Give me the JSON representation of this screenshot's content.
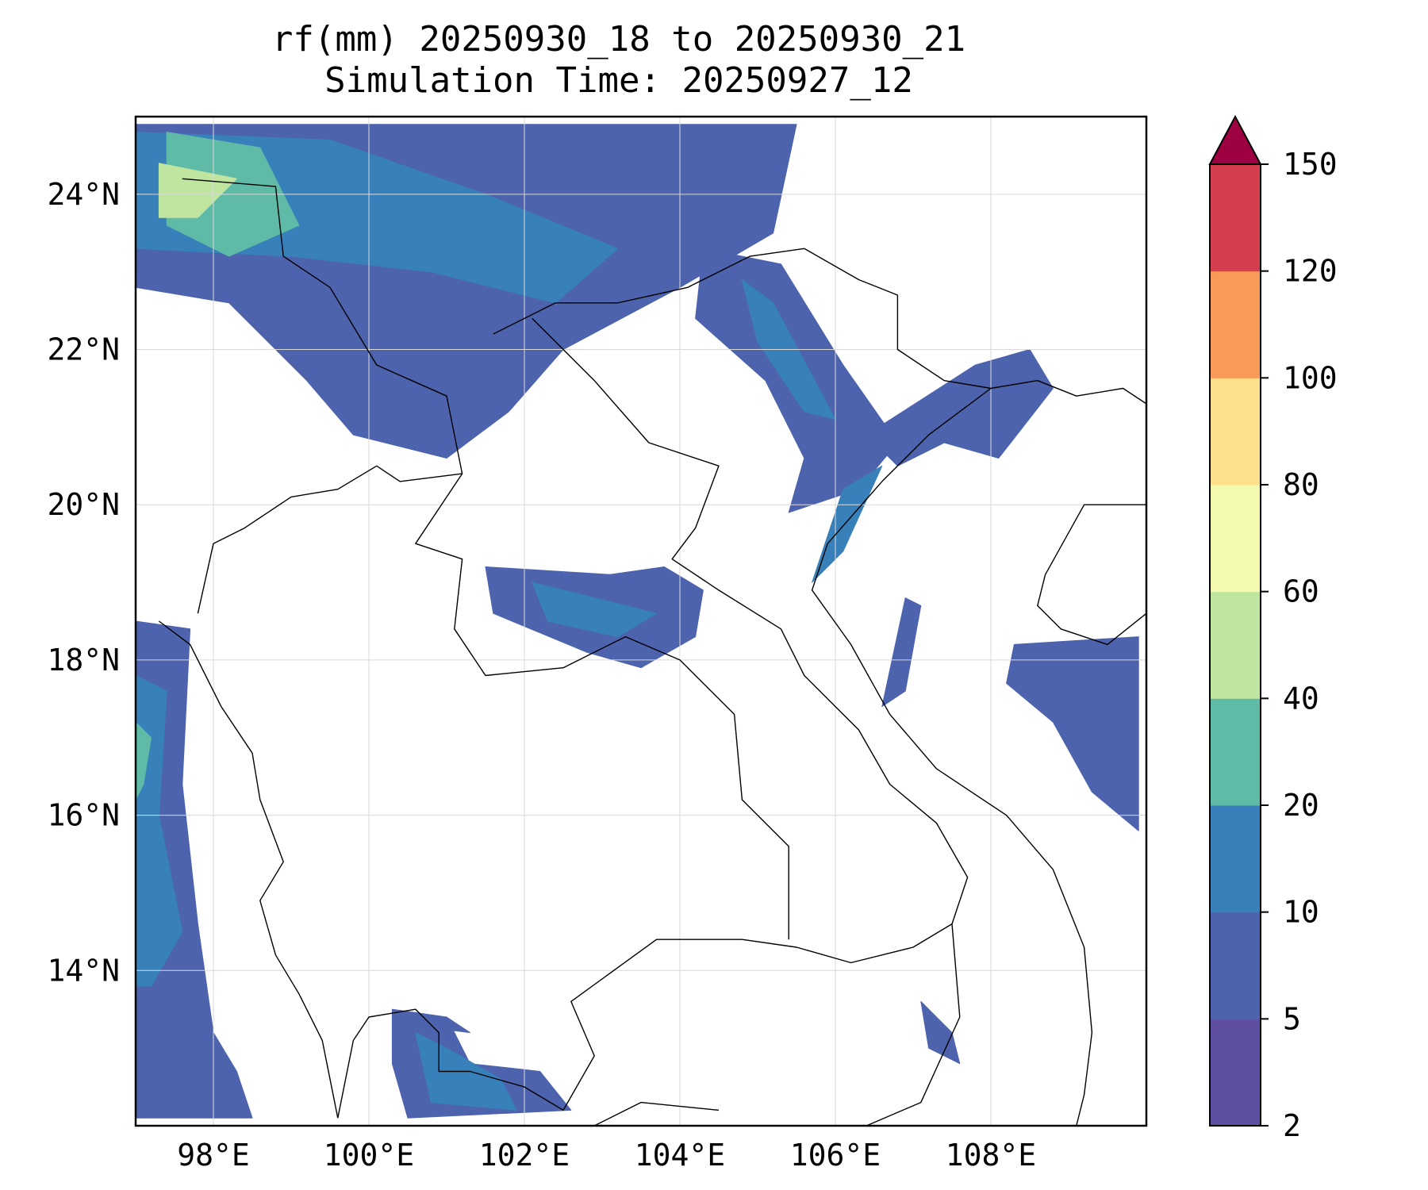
{
  "title": {
    "line1": "rf(mm) 20250930_18 to 20250930_21",
    "line2": "Simulation Time: 20250927_12"
  },
  "map": {
    "lon_range": [
      97,
      110
    ],
    "lat_range": [
      12,
      25
    ],
    "lon_ticks": [
      {
        "value": 98,
        "label": "98°E"
      },
      {
        "value": 100,
        "label": "100°E"
      },
      {
        "value": 102,
        "label": "102°E"
      },
      {
        "value": 104,
        "label": "104°E"
      },
      {
        "value": 106,
        "label": "106°E"
      },
      {
        "value": 108,
        "label": "108°E"
      }
    ],
    "lat_ticks": [
      {
        "value": 24,
        "label": "24°N"
      },
      {
        "value": 22,
        "label": "22°N"
      },
      {
        "value": 20,
        "label": "20°N"
      },
      {
        "value": 18,
        "label": "18°N"
      },
      {
        "value": 16,
        "label": "16°N"
      },
      {
        "value": 14,
        "label": "14°N"
      }
    ],
    "grid": true
  },
  "colorbar": {
    "extend": "max",
    "extend_color": "#9e0142",
    "levels": [
      {
        "from": 2,
        "to": 5,
        "color": "#5e4fa2"
      },
      {
        "from": 5,
        "to": 10,
        "color": "#4d63ad"
      },
      {
        "from": 10,
        "to": 20,
        "color": "#3880b9"
      },
      {
        "from": 20,
        "to": 40,
        "color": "#5fbaa8"
      },
      {
        "from": 40,
        "to": 60,
        "color": "#bfe5a0"
      },
      {
        "from": 60,
        "to": 80,
        "color": "#f4faad"
      },
      {
        "from": 80,
        "to": 100,
        "color": "#fedf8b"
      },
      {
        "from": 100,
        "to": 120,
        "color": "#fa9a58"
      },
      {
        "from": 120,
        "to": 150,
        "color": "#d53e4f"
      }
    ],
    "tick_labels": [
      "2",
      "5",
      "10",
      "20",
      "40",
      "60",
      "80",
      "100",
      "120",
      "150"
    ]
  },
  "rain_regions": [
    {
      "name": "north-band",
      "color": "#4d63ad",
      "pts": [
        [
          97,
          24.9
        ],
        [
          105.5,
          24.9
        ],
        [
          105.2,
          23.5
        ],
        [
          104,
          22.8
        ],
        [
          102.5,
          22
        ],
        [
          101.8,
          21.2
        ],
        [
          101,
          20.6
        ],
        [
          99.8,
          20.9
        ],
        [
          99.2,
          21.6
        ],
        [
          98.2,
          22.6
        ],
        [
          97,
          22.8
        ]
      ]
    },
    {
      "name": "north-mid",
      "color": "#3880b9",
      "pts": [
        [
          97,
          24.8
        ],
        [
          99.5,
          24.7
        ],
        [
          101.5,
          24
        ],
        [
          103.2,
          23.3
        ],
        [
          102.4,
          22.6
        ],
        [
          100.8,
          23
        ],
        [
          99,
          23.2
        ],
        [
          97,
          23.3
        ]
      ]
    },
    {
      "name": "north-west-core",
      "color": "#5fbaa8",
      "pts": [
        [
          97.4,
          24.8
        ],
        [
          98.6,
          24.6
        ],
        [
          99.1,
          23.6
        ],
        [
          98.2,
          23.2
        ],
        [
          97.4,
          23.6
        ]
      ]
    },
    {
      "name": "north-west-peak",
      "color": "#bfe5a0",
      "pts": [
        [
          97.3,
          24.4
        ],
        [
          98.3,
          24.2
        ],
        [
          97.8,
          23.7
        ],
        [
          97.3,
          23.7
        ]
      ]
    },
    {
      "name": "vietnam-ridge",
      "color": "#4d63ad",
      "pts": [
        [
          104.3,
          23.3
        ],
        [
          105.3,
          23.1
        ],
        [
          106.1,
          21.8
        ],
        [
          106.8,
          20.8
        ],
        [
          106.3,
          20.2
        ],
        [
          105.4,
          19.9
        ],
        [
          105.6,
          20.6
        ],
        [
          105.1,
          21.6
        ],
        [
          104.2,
          22.4
        ]
      ]
    },
    {
      "name": "vietnam-ridge-core",
      "color": "#3880b9",
      "pts": [
        [
          104.8,
          22.9
        ],
        [
          105.2,
          22.6
        ],
        [
          106,
          21.1
        ],
        [
          105.6,
          21.2
        ],
        [
          105,
          22.1
        ]
      ]
    },
    {
      "name": "gulf-north",
      "color": "#4d63ad",
      "pts": [
        [
          106.4,
          20.9
        ],
        [
          107.8,
          21.8
        ],
        [
          108.5,
          22
        ],
        [
          108.8,
          21.5
        ],
        [
          108.1,
          20.6
        ],
        [
          107.4,
          20.8
        ],
        [
          106.8,
          20.5
        ]
      ]
    },
    {
      "name": "coast-strip",
      "color": "#3880b9",
      "pts": [
        [
          106.1,
          20.2
        ],
        [
          106.6,
          20.5
        ],
        [
          106.1,
          19.4
        ],
        [
          105.7,
          19
        ]
      ]
    },
    {
      "name": "central-laos",
      "color": "#4d63ad",
      "pts": [
        [
          101.5,
          19.2
        ],
        [
          103.1,
          19.1
        ],
        [
          103.8,
          19.2
        ],
        [
          104.3,
          18.9
        ],
        [
          104.2,
          18.3
        ],
        [
          103.5,
          17.9
        ],
        [
          102.8,
          18.1
        ],
        [
          101.6,
          18.6
        ]
      ]
    },
    {
      "name": "central-laos-core",
      "color": "#3880b9",
      "pts": [
        [
          102.1,
          19
        ],
        [
          102.9,
          18.8
        ],
        [
          103.7,
          18.6
        ],
        [
          103.2,
          18.3
        ],
        [
          102.3,
          18.5
        ]
      ]
    },
    {
      "name": "gulf-west-strip",
      "color": "#4d63ad",
      "pts": [
        [
          106.9,
          18.8
        ],
        [
          107.1,
          18.7
        ],
        [
          106.9,
          17.6
        ],
        [
          106.6,
          17.4
        ]
      ]
    },
    {
      "name": "myanmar-coast",
      "color": "#4d63ad",
      "pts": [
        [
          97,
          18.5
        ],
        [
          97.7,
          18.4
        ],
        [
          97.6,
          16.4
        ],
        [
          97.8,
          14.6
        ],
        [
          98,
          13.2
        ],
        [
          98.3,
          12.7
        ],
        [
          98.5,
          12.1
        ],
        [
          97,
          12.1
        ]
      ]
    },
    {
      "name": "myanmar-coast-core",
      "color": "#3880b9",
      "pts": [
        [
          97,
          17.8
        ],
        [
          97.4,
          17.6
        ],
        [
          97.3,
          16
        ],
        [
          97.6,
          14.5
        ],
        [
          97.2,
          13.8
        ],
        [
          97,
          13.8
        ]
      ]
    },
    {
      "name": "myanmar-coast-peak",
      "color": "#5fbaa8",
      "pts": [
        [
          97,
          17.2
        ],
        [
          97.2,
          17
        ],
        [
          97.1,
          16.4
        ],
        [
          97,
          16.2
        ]
      ]
    },
    {
      "name": "gulf-thailand",
      "color": "#4d63ad",
      "pts": [
        [
          100.3,
          13.5
        ],
        [
          101,
          13.4
        ],
        [
          101.3,
          12.8
        ],
        [
          102.2,
          12.7
        ],
        [
          102.6,
          12.2
        ],
        [
          100.5,
          12.1
        ],
        [
          100.3,
          12.8
        ]
      ]
    },
    {
      "name": "gulf-thailand-core",
      "color": "#3880b9",
      "pts": [
        [
          100.6,
          13.2
        ],
        [
          101,
          13
        ],
        [
          101.7,
          12.6
        ],
        [
          101.9,
          12.2
        ],
        [
          100.8,
          12.3
        ]
      ]
    },
    {
      "name": "east-sea-patches",
      "color": "#4d63ad",
      "pts": [
        [
          108.3,
          18.2
        ],
        [
          109.9,
          18.3
        ],
        [
          109.9,
          15.8
        ],
        [
          109.3,
          16.3
        ],
        [
          108.8,
          17.2
        ],
        [
          108.2,
          17.7
        ]
      ]
    },
    {
      "name": "south-east-patch",
      "color": "#4d63ad",
      "pts": [
        [
          107.1,
          13.6
        ],
        [
          107.5,
          13.2
        ],
        [
          107.6,
          12.8
        ],
        [
          107.2,
          13
        ]
      ]
    },
    {
      "name": "south-central-patch",
      "color": "#4d63ad",
      "pts": [
        [
          100.5,
          13.3
        ],
        [
          101.3,
          13.2
        ],
        [
          101,
          13.4
        ]
      ]
    }
  ],
  "borders": [
    {
      "name": "myanmar-thailand-border",
      "pts": [
        [
          97.3,
          18.5
        ],
        [
          97.7,
          18.2
        ],
        [
          98.1,
          17.4
        ],
        [
          98.5,
          16.8
        ],
        [
          98.6,
          16.2
        ],
        [
          98.9,
          15.4
        ],
        [
          98.6,
          14.9
        ],
        [
          98.8,
          14.2
        ],
        [
          99.1,
          13.7
        ],
        [
          99.4,
          13.1
        ],
        [
          99.5,
          12.6
        ],
        [
          99.6,
          12.1
        ]
      ]
    },
    {
      "name": "myanmar-laos-china-border",
      "pts": [
        [
          97.6,
          24.2
        ],
        [
          98.8,
          24.1
        ],
        [
          98.9,
          23.2
        ],
        [
          99.5,
          22.8
        ],
        [
          100.1,
          21.8
        ],
        [
          101,
          21.4
        ],
        [
          101.2,
          20.4
        ],
        [
          100.4,
          20.3
        ],
        [
          100.1,
          20.5
        ],
        [
          99.6,
          20.2
        ],
        [
          99.0,
          20.1
        ],
        [
          98.4,
          19.7
        ],
        [
          98.0,
          19.5
        ],
        [
          97.8,
          18.6
        ]
      ]
    },
    {
      "name": "china-vietnam-border",
      "pts": [
        [
          101.6,
          22.2
        ],
        [
          102.4,
          22.6
        ],
        [
          103.2,
          22.6
        ],
        [
          104.1,
          22.8
        ],
        [
          104.9,
          23.2
        ],
        [
          105.6,
          23.3
        ],
        [
          106.3,
          22.9
        ],
        [
          106.8,
          22.7
        ],
        [
          106.8,
          22.0
        ],
        [
          107.4,
          21.6
        ],
        [
          108.0,
          21.5
        ]
      ]
    },
    {
      "name": "laos-vietnam-border",
      "pts": [
        [
          102.1,
          22.4
        ],
        [
          102.9,
          21.6
        ],
        [
          103.6,
          20.8
        ],
        [
          104.5,
          20.5
        ],
        [
          104.2,
          19.7
        ],
        [
          103.9,
          19.3
        ],
        [
          104.5,
          18.9
        ],
        [
          105.3,
          18.4
        ],
        [
          105.6,
          17.8
        ],
        [
          106.3,
          17.1
        ],
        [
          106.7,
          16.4
        ],
        [
          107.3,
          15.9
        ],
        [
          107.7,
          15.2
        ],
        [
          107.5,
          14.6
        ]
      ]
    },
    {
      "name": "thailand-laos-border",
      "pts": [
        [
          101.2,
          20.4
        ],
        [
          100.6,
          19.5
        ],
        [
          101.2,
          19.3
        ],
        [
          101.1,
          18.4
        ],
        [
          101.5,
          17.8
        ],
        [
          102.5,
          17.9
        ],
        [
          103.3,
          18.3
        ],
        [
          104.0,
          18.0
        ],
        [
          104.7,
          17.3
        ],
        [
          104.8,
          16.2
        ],
        [
          105.4,
          15.6
        ],
        [
          105.4,
          14.4
        ]
      ]
    },
    {
      "name": "thailand-cambodia-border",
      "pts": [
        [
          102.5,
          12.2
        ],
        [
          102.9,
          12.9
        ],
        [
          102.6,
          13.6
        ],
        [
          103.7,
          14.4
        ],
        [
          104.8,
          14.4
        ],
        [
          105.5,
          14.3
        ],
        [
          106.2,
          14.1
        ],
        [
          107.0,
          14.3
        ],
        [
          107.5,
          14.6
        ]
      ]
    },
    {
      "name": "cambodia-vietnam-border",
      "pts": [
        [
          107.5,
          14.6
        ],
        [
          107.6,
          13.4
        ],
        [
          107.1,
          12.3
        ],
        [
          106.4,
          12
        ]
      ]
    },
    {
      "name": "vietnam-coast",
      "pts": [
        [
          108.0,
          21.5
        ],
        [
          107.2,
          20.9
        ],
        [
          106.6,
          20.3
        ],
        [
          105.9,
          19.5
        ],
        [
          105.7,
          18.9
        ],
        [
          106.2,
          18.2
        ],
        [
          106.7,
          17.3
        ],
        [
          107.3,
          16.6
        ],
        [
          108.2,
          16.0
        ],
        [
          108.8,
          15.3
        ],
        [
          109.2,
          14.3
        ],
        [
          109.3,
          13.2
        ],
        [
          109.2,
          12.4
        ],
        [
          109.1,
          12
        ]
      ]
    },
    {
      "name": "china-coast",
      "pts": [
        [
          108.0,
          21.5
        ],
        [
          108.6,
          21.6
        ],
        [
          109.1,
          21.4
        ],
        [
          109.7,
          21.5
        ],
        [
          110,
          21.3
        ]
      ]
    },
    {
      "name": "hainan-coast",
      "pts": [
        [
          108.7,
          19.1
        ],
        [
          109.2,
          20.0
        ],
        [
          110,
          20.0
        ],
        [
          110,
          18.6
        ],
        [
          109.5,
          18.2
        ],
        [
          108.9,
          18.4
        ],
        [
          108.6,
          18.7
        ],
        [
          108.7,
          19.1
        ]
      ]
    },
    {
      "name": "thailand-gulf-coast",
      "pts": [
        [
          99.6,
          12.1
        ],
        [
          99.8,
          13.1
        ],
        [
          100.0,
          13.4
        ],
        [
          100.6,
          13.5
        ],
        [
          100.9,
          13.2
        ],
        [
          100.9,
          12.7
        ],
        [
          101.3,
          12.7
        ],
        [
          102.0,
          12.5
        ],
        [
          102.5,
          12.2
        ]
      ]
    },
    {
      "name": "cambodia-coast",
      "pts": [
        [
          102.9,
          12.0
        ],
        [
          103.5,
          12.3
        ],
        [
          104.5,
          12.2
        ]
      ]
    }
  ]
}
